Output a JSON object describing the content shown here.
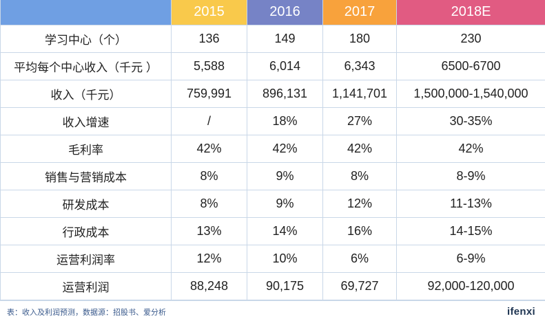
{
  "header": {
    "label_col": "",
    "years": [
      "2015",
      "2016",
      "2017",
      "2018E"
    ]
  },
  "colors": {
    "label_header": "#6f9fe3",
    "year_headers": [
      "#f9c94b",
      "#7683c6",
      "#f8a23c",
      "#e15b82"
    ]
  },
  "rows": [
    {
      "label": "学习中心（个）",
      "values": [
        "136",
        "149",
        "180",
        "230"
      ]
    },
    {
      "label": "平均每个中心收入（千元 ）",
      "values": [
        "5,588",
        "6,014",
        "6,343",
        "6500-6700"
      ]
    },
    {
      "label": "收入（千元）",
      "values": [
        "759,991",
        "896,131",
        "1,141,701",
        "1,500,000-1,540,000"
      ]
    },
    {
      "label": "收入增速",
      "values": [
        "/",
        "18%",
        "27%",
        "30-35%"
      ]
    },
    {
      "label": "毛利率",
      "values": [
        "42%",
        "42%",
        "42%",
        "42%"
      ]
    },
    {
      "label": "销售与营销成本",
      "values": [
        "8%",
        "9%",
        "8%",
        "8-9%"
      ]
    },
    {
      "label": "研发成本",
      "values": [
        "8%",
        "9%",
        "12%",
        "11-13%"
      ]
    },
    {
      "label": "行政成本",
      "values": [
        "13%",
        "14%",
        "16%",
        "14-15%"
      ]
    },
    {
      "label": "运营利润率",
      "values": [
        "12%",
        "10%",
        "6%",
        "6-9%"
      ]
    },
    {
      "label": "运营利润",
      "values": [
        "88,248",
        "90,175",
        "69,727",
        "92,000-120,000"
      ]
    }
  ],
  "footer": {
    "source": "表：收入及利润预测，数据源：招股书、爱分析",
    "logo": "ifenxi"
  }
}
